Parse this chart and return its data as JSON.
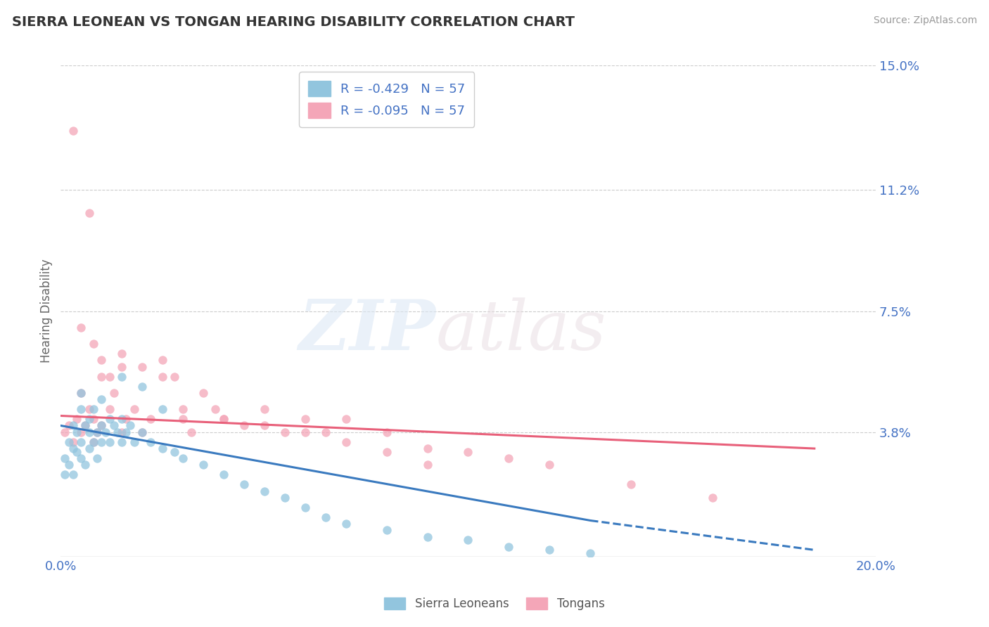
{
  "title": "SIERRA LEONEAN VS TONGAN HEARING DISABILITY CORRELATION CHART",
  "source": "Source: ZipAtlas.com",
  "ylabel": "Hearing Disability",
  "xlim": [
    0.0,
    0.2
  ],
  "ylim": [
    0.0,
    0.15
  ],
  "ytick_labels": [
    "3.8%",
    "7.5%",
    "11.2%",
    "15.0%"
  ],
  "ytick_positions": [
    0.038,
    0.075,
    0.112,
    0.15
  ],
  "legend_entry1": "R = -0.429   N = 57",
  "legend_entry2": "R = -0.095   N = 57",
  "legend_label1": "Sierra Leoneans",
  "legend_label2": "Tongans",
  "blue_color": "#92c5de",
  "pink_color": "#f4a6b8",
  "blue_line_color": "#3a7abf",
  "pink_line_color": "#e8607a",
  "tick_label_color": "#4472c4",
  "source_color": "#999999",
  "blue_scatter_x": [
    0.001,
    0.001,
    0.002,
    0.002,
    0.003,
    0.003,
    0.003,
    0.004,
    0.004,
    0.005,
    0.005,
    0.005,
    0.006,
    0.006,
    0.007,
    0.007,
    0.007,
    0.008,
    0.008,
    0.009,
    0.009,
    0.01,
    0.01,
    0.011,
    0.012,
    0.012,
    0.013,
    0.014,
    0.015,
    0.015,
    0.016,
    0.017,
    0.018,
    0.02,
    0.022,
    0.025,
    0.028,
    0.03,
    0.035,
    0.04,
    0.045,
    0.05,
    0.055,
    0.06,
    0.065,
    0.07,
    0.08,
    0.09,
    0.1,
    0.11,
    0.12,
    0.13,
    0.005,
    0.01,
    0.015,
    0.02,
    0.025
  ],
  "blue_scatter_y": [
    0.03,
    0.025,
    0.035,
    0.028,
    0.033,
    0.04,
    0.025,
    0.038,
    0.032,
    0.045,
    0.035,
    0.03,
    0.04,
    0.028,
    0.042,
    0.038,
    0.033,
    0.035,
    0.045,
    0.038,
    0.03,
    0.04,
    0.035,
    0.038,
    0.042,
    0.035,
    0.04,
    0.038,
    0.035,
    0.042,
    0.038,
    0.04,
    0.035,
    0.038,
    0.035,
    0.033,
    0.032,
    0.03,
    0.028,
    0.025,
    0.022,
    0.02,
    0.018,
    0.015,
    0.012,
    0.01,
    0.008,
    0.006,
    0.005,
    0.003,
    0.002,
    0.001,
    0.05,
    0.048,
    0.055,
    0.052,
    0.045
  ],
  "pink_scatter_x": [
    0.001,
    0.002,
    0.003,
    0.004,
    0.005,
    0.005,
    0.006,
    0.007,
    0.008,
    0.008,
    0.009,
    0.01,
    0.01,
    0.012,
    0.013,
    0.015,
    0.015,
    0.016,
    0.018,
    0.02,
    0.022,
    0.025,
    0.028,
    0.03,
    0.032,
    0.035,
    0.038,
    0.04,
    0.045,
    0.05,
    0.055,
    0.06,
    0.065,
    0.07,
    0.08,
    0.09,
    0.1,
    0.11,
    0.12,
    0.14,
    0.16,
    0.005,
    0.008,
    0.01,
    0.012,
    0.015,
    0.02,
    0.025,
    0.03,
    0.04,
    0.05,
    0.06,
    0.07,
    0.08,
    0.09,
    0.003,
    0.007
  ],
  "pink_scatter_y": [
    0.038,
    0.04,
    0.035,
    0.042,
    0.038,
    0.05,
    0.04,
    0.045,
    0.042,
    0.035,
    0.038,
    0.04,
    0.055,
    0.045,
    0.05,
    0.058,
    0.038,
    0.042,
    0.045,
    0.038,
    0.042,
    0.06,
    0.055,
    0.042,
    0.038,
    0.05,
    0.045,
    0.042,
    0.04,
    0.045,
    0.038,
    0.042,
    0.038,
    0.042,
    0.038,
    0.033,
    0.032,
    0.03,
    0.028,
    0.022,
    0.018,
    0.07,
    0.065,
    0.06,
    0.055,
    0.062,
    0.058,
    0.055,
    0.045,
    0.042,
    0.04,
    0.038,
    0.035,
    0.032,
    0.028,
    0.13,
    0.105
  ],
  "blue_trend_x0": 0.0,
  "blue_trend_x1": 0.13,
  "blue_trend_x2": 0.185,
  "blue_trend_y0": 0.04,
  "blue_trend_y1": 0.011,
  "blue_trend_y2": 0.002,
  "pink_trend_x0": 0.0,
  "pink_trend_x1": 0.185,
  "pink_trend_y0": 0.043,
  "pink_trend_y1": 0.033
}
